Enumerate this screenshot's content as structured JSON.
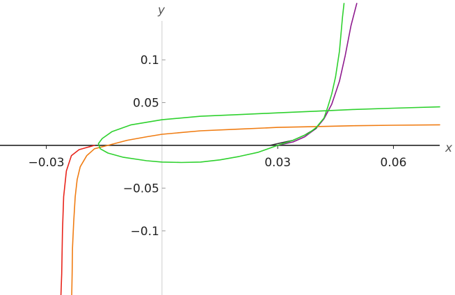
{
  "chart_data": {
    "type": "line",
    "title": "",
    "xlabel": "x",
    "ylabel": "y",
    "xlim": [
      -0.042,
      0.072
    ],
    "ylim": [
      -0.175,
      0.17
    ],
    "x_ticks": [
      {
        "value": -0.03,
        "label": "−0.03"
      },
      {
        "value": 0.03,
        "label": "0.03"
      },
      {
        "value": 0.06,
        "label": "0.06"
      }
    ],
    "y_ticks": [
      {
        "value": 0.1,
        "label": "0.1"
      },
      {
        "value": 0.05,
        "label": "0.05"
      },
      {
        "value": -0.05,
        "label": "−0.05"
      },
      {
        "value": -0.1,
        "label": "−0.1"
      }
    ],
    "grid": false,
    "colors": {
      "x_axis": "#222222",
      "y_axis": "#cccccc",
      "purple": "#8e1a8e",
      "red": "#e8231a",
      "orange": "#f07c12",
      "green": "#2ed12e",
      "dark": "#3a3a3a"
    },
    "series": [
      {
        "color": "#8e1a8e",
        "points": [
          [
            0.03,
            0.0
          ],
          [
            0.034,
            0.004
          ],
          [
            0.037,
            0.01
          ],
          [
            0.04,
            0.02
          ],
          [
            0.042,
            0.031
          ],
          [
            0.044,
            0.048
          ],
          [
            0.046,
            0.075
          ],
          [
            0.0475,
            0.105
          ],
          [
            0.049,
            0.14
          ],
          [
            0.0505,
            0.166
          ]
        ]
      },
      {
        "color": "#3a3a3a",
        "points": [
          [
            0.028,
            0.0
          ],
          [
            0.031,
            0.003
          ],
          [
            0.034,
            0.006
          ],
          [
            0.037,
            0.012
          ],
          [
            0.04,
            0.02
          ]
        ]
      },
      {
        "color": "#e8231a",
        "points": [
          [
            -0.0175,
            0.0
          ],
          [
            -0.0215,
            -0.005
          ],
          [
            -0.0235,
            -0.012
          ],
          [
            -0.0248,
            -0.03
          ],
          [
            -0.0255,
            -0.06
          ],
          [
            -0.0258,
            -0.1
          ],
          [
            -0.026,
            -0.15
          ],
          [
            -0.0262,
            -0.175
          ]
        ]
      },
      {
        "color": "#f07c12",
        "points": [
          [
            -0.0234,
            -0.175
          ],
          [
            -0.0233,
            -0.15
          ],
          [
            -0.0232,
            -0.12
          ],
          [
            -0.0229,
            -0.09
          ],
          [
            -0.0225,
            -0.06
          ],
          [
            -0.022,
            -0.04
          ],
          [
            -0.0212,
            -0.025
          ],
          [
            -0.0195,
            -0.012
          ],
          [
            -0.0175,
            -0.004
          ],
          [
            -0.014,
            0.0
          ],
          [
            -0.009,
            0.006
          ],
          [
            -0.004,
            0.01
          ],
          [
            0.0,
            0.013
          ],
          [
            0.01,
            0.017
          ],
          [
            0.02,
            0.019
          ],
          [
            0.03,
            0.021
          ],
          [
            0.04,
            0.022
          ],
          [
            0.05,
            0.023
          ],
          [
            0.06,
            0.0235
          ],
          [
            0.072,
            0.024
          ]
        ]
      },
      {
        "color": "#2ed12e",
        "points": [
          [
            0.072,
            0.045
          ],
          [
            0.06,
            0.0435
          ],
          [
            0.05,
            0.042
          ],
          [
            0.04,
            0.04
          ],
          [
            0.03,
            0.038
          ],
          [
            0.02,
            0.036
          ],
          [
            0.01,
            0.034
          ],
          [
            0.0,
            0.03
          ],
          [
            -0.008,
            0.024
          ],
          [
            -0.013,
            0.016
          ],
          [
            -0.0155,
            0.008
          ],
          [
            -0.0165,
            0.002
          ],
          [
            -0.016,
            -0.004
          ],
          [
            -0.014,
            -0.009
          ],
          [
            -0.01,
            -0.014
          ],
          [
            -0.004,
            -0.018
          ],
          [
            0.0,
            -0.0195
          ],
          [
            0.005,
            -0.02
          ],
          [
            0.01,
            -0.0195
          ],
          [
            0.015,
            -0.017
          ],
          [
            0.02,
            -0.013
          ],
          [
            0.025,
            -0.008
          ],
          [
            0.03,
            0.0
          ],
          [
            0.034,
            0.006
          ],
          [
            0.038,
            0.014
          ],
          [
            0.04,
            0.021
          ],
          [
            0.042,
            0.032
          ],
          [
            0.043,
            0.045
          ],
          [
            0.044,
            0.06
          ],
          [
            0.045,
            0.08
          ],
          [
            0.046,
            0.11
          ],
          [
            0.0468,
            0.15
          ],
          [
            0.0472,
            0.166
          ]
        ]
      }
    ]
  }
}
